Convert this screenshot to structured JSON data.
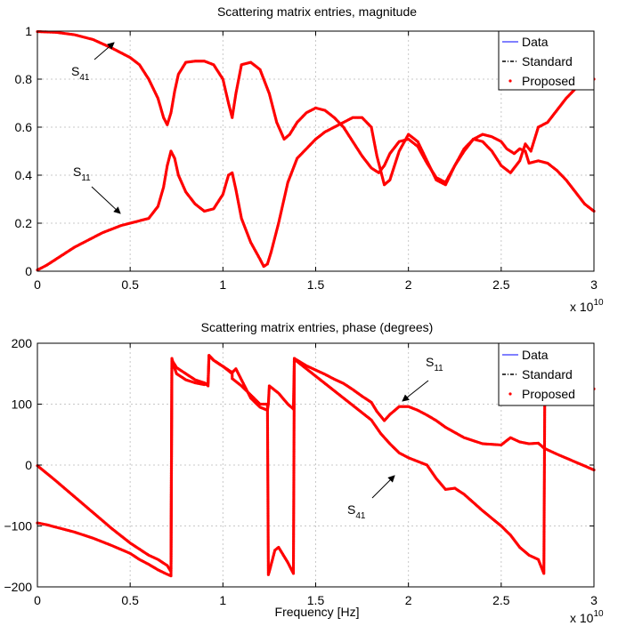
{
  "chart_data": [
    {
      "id": "magnitude",
      "type": "line",
      "title": "Scattering matrix entries, magnitude",
      "xlabel": "",
      "ylabel": "",
      "xlim": [
        0,
        30000000000.0
      ],
      "ylim": [
        0,
        1
      ],
      "x_ticks": [
        0,
        5000000000.0,
        10000000000.0,
        15000000000.0,
        20000000000.0,
        25000000000.0,
        30000000000.0
      ],
      "x_tick_labels": [
        "0",
        "0.5",
        "1",
        "1.5",
        "2",
        "2.5",
        "3"
      ],
      "y_ticks": [
        0,
        0.2,
        0.4,
        0.6,
        0.8,
        1
      ],
      "y_tick_labels": [
        "0",
        "0.2",
        "0.4",
        "0.6",
        "0.8",
        "1"
      ],
      "x_exponent_label": {
        "base": "x 10",
        "exp": "10"
      },
      "grid": true,
      "legend_position": "top-right",
      "legend": [
        {
          "label": "Data",
          "style": "solid",
          "color": "#0000ff"
        },
        {
          "label": "Standard",
          "style": "dashdot",
          "color": "#000000"
        },
        {
          "label": "Proposed",
          "style": "dots",
          "color": "#ff0000"
        }
      ],
      "annotations": [
        {
          "base": "S",
          "sub": "41"
        },
        {
          "base": "S",
          "sub": "11"
        }
      ],
      "series": [
        {
          "name": "S41",
          "x_ghz": [
            0,
            1,
            2,
            3,
            4,
            5,
            5.5,
            6,
            6.5,
            6.8,
            7,
            7.2,
            7.4,
            7.6,
            8,
            8.5,
            9,
            9.5,
            10,
            10.3,
            10.5,
            10.7,
            11,
            11.5,
            12,
            12.5,
            12.9,
            13.3,
            13.6,
            14,
            14.5,
            15,
            15.5,
            16,
            16.5,
            17,
            17.5,
            18,
            18.4,
            18.7,
            19,
            19.5,
            20,
            20.5,
            21,
            21.5,
            22,
            22.5,
            23,
            23.5,
            24,
            24.5,
            25,
            25.3,
            25.7,
            26,
            26.3,
            26.5,
            27,
            27.5,
            28,
            28.5,
            29,
            29.5,
            30
          ],
          "y": [
            0.998,
            0.995,
            0.985,
            0.965,
            0.93,
            0.89,
            0.86,
            0.8,
            0.72,
            0.64,
            0.61,
            0.66,
            0.75,
            0.82,
            0.87,
            0.875,
            0.875,
            0.86,
            0.8,
            0.7,
            0.64,
            0.74,
            0.86,
            0.87,
            0.84,
            0.74,
            0.62,
            0.55,
            0.57,
            0.62,
            0.66,
            0.68,
            0.67,
            0.64,
            0.6,
            0.54,
            0.48,
            0.43,
            0.41,
            0.44,
            0.49,
            0.54,
            0.55,
            0.52,
            0.45,
            0.39,
            0.37,
            0.44,
            0.5,
            0.55,
            0.57,
            0.56,
            0.54,
            0.51,
            0.49,
            0.51,
            0.5,
            0.45,
            0.46,
            0.45,
            0.42,
            0.38,
            0.33,
            0.28,
            0.25
          ]
        },
        {
          "name": "S11",
          "x_ghz": [
            0,
            0.5,
            1,
            1.5,
            2,
            2.5,
            3,
            3.5,
            4,
            4.5,
            5,
            5.5,
            6,
            6.5,
            6.8,
            7,
            7.2,
            7.4,
            7.6,
            8,
            8.5,
            9,
            9.5,
            10,
            10.3,
            10.5,
            10.7,
            11,
            11.5,
            12,
            12.2,
            12.4,
            12.6,
            13,
            13.5,
            14,
            14.5,
            15,
            15.5,
            16,
            16.5,
            17,
            17.5,
            18,
            18.3,
            18.7,
            19,
            19.5,
            20,
            20.5,
            21,
            21.5,
            22,
            22.5,
            23,
            23.5,
            24,
            24.5,
            25,
            25.5,
            26,
            26.3,
            26.6,
            27,
            27.5,
            28,
            28.5,
            29,
            30
          ],
          "y": [
            0.005,
            0.025,
            0.05,
            0.075,
            0.1,
            0.12,
            0.14,
            0.16,
            0.175,
            0.19,
            0.2,
            0.21,
            0.22,
            0.27,
            0.35,
            0.44,
            0.5,
            0.47,
            0.4,
            0.33,
            0.28,
            0.25,
            0.26,
            0.32,
            0.4,
            0.41,
            0.34,
            0.22,
            0.12,
            0.05,
            0.02,
            0.03,
            0.08,
            0.2,
            0.37,
            0.47,
            0.51,
            0.55,
            0.58,
            0.6,
            0.62,
            0.64,
            0.64,
            0.6,
            0.48,
            0.36,
            0.38,
            0.5,
            0.57,
            0.54,
            0.46,
            0.38,
            0.36,
            0.44,
            0.51,
            0.55,
            0.54,
            0.5,
            0.44,
            0.41,
            0.46,
            0.53,
            0.5,
            0.6,
            0.62,
            0.67,
            0.72,
            0.76,
            0.8
          ]
        }
      ]
    },
    {
      "id": "phase",
      "type": "line",
      "title": "Scattering matrix entries, phase (degrees)",
      "xlabel": "Frequency [Hz]",
      "ylabel": "",
      "xlim": [
        0,
        30000000000.0
      ],
      "ylim": [
        -200,
        200
      ],
      "x_ticks": [
        0,
        5000000000.0,
        10000000000.0,
        15000000000.0,
        20000000000.0,
        25000000000.0,
        30000000000.0
      ],
      "x_tick_labels": [
        "0",
        "0.5",
        "1",
        "1.5",
        "2",
        "2.5",
        "3"
      ],
      "y_ticks": [
        -200,
        -100,
        0,
        100,
        200
      ],
      "y_tick_labels": [
        "−200",
        "−100",
        "0",
        "100",
        "200"
      ],
      "x_exponent_label": {
        "base": "x 10",
        "exp": "10"
      },
      "grid": true,
      "legend_position": "top-right",
      "legend": [
        {
          "label": "Data",
          "style": "solid",
          "color": "#0000ff"
        },
        {
          "label": "Standard",
          "style": "dashdot",
          "color": "#000000"
        },
        {
          "label": "Proposed",
          "style": "dots",
          "color": "#ff0000"
        }
      ],
      "annotations": [
        {
          "base": "S",
          "sub": "11"
        },
        {
          "base": "S",
          "sub": "41"
        }
      ],
      "series": [
        {
          "name": "S11",
          "x_ghz": [
            0,
            0.5,
            1,
            2,
            3,
            4,
            5,
            5.5,
            6,
            6.5,
            6.9,
            7.2,
            7.25,
            7.5,
            8,
            8.5,
            9,
            9.2,
            9.25,
            9.5,
            10,
            10.5,
            10.7,
            11,
            11.5,
            12,
            12.4,
            12.45,
            12.5,
            13,
            13.5,
            13.8,
            13.85,
            14.5,
            15,
            15.5,
            16,
            16.5,
            17,
            17.5,
            18,
            18.3,
            18.7,
            19,
            19.5,
            20,
            20.5,
            21,
            21.5,
            22,
            23,
            24,
            25,
            25.5,
            26,
            26.5,
            27,
            27.3,
            27.5,
            28,
            29,
            30
          ],
          "y": [
            -95,
            -98,
            -102,
            -110,
            -120,
            -132,
            -145,
            -155,
            -163,
            -172,
            -178,
            -182,
            172,
            150,
            140,
            135,
            132,
            135,
            180,
            172,
            162,
            152,
            158,
            140,
            110,
            95,
            90,
            100,
            130,
            118,
            100,
            92,
            175,
            163,
            156,
            149,
            141,
            134,
            124,
            113,
            103,
            88,
            73,
            83,
            96,
            96,
            90,
            82,
            73,
            62,
            45,
            35,
            33,
            45,
            38,
            35,
            36,
            28,
            25,
            18,
            5,
            -8
          ]
        },
        {
          "name": "S41",
          "x_ghz": [
            0,
            1,
            2,
            3,
            4,
            5,
            6,
            6.5,
            7,
            7.2,
            7.25,
            7.3,
            7.5,
            8,
            8.5,
            9,
            9.2,
            9.25,
            9.5,
            10,
            10.5,
            10.5,
            11,
            11.5,
            12,
            12.4,
            12.45,
            12.5,
            12.8,
            13,
            13.5,
            13.8,
            13.85,
            14,
            14.5,
            15,
            16,
            17,
            18,
            18.5,
            19,
            19.5,
            20,
            21,
            21.5,
            22,
            22.5,
            23,
            24,
            25,
            25.5,
            26,
            26.5,
            27,
            27.3,
            27.35,
            27.5,
            30
          ],
          "y": [
            -1,
            -26,
            -52,
            -78,
            -104,
            -128,
            -148,
            -155,
            -165,
            -175,
            175,
            170,
            160,
            150,
            140,
            135,
            130,
            180,
            172,
            162,
            150,
            142,
            130,
            115,
            100,
            100,
            -180,
            -175,
            -140,
            -135,
            -160,
            -178,
            175,
            170,
            158,
            146,
            122,
            98,
            74,
            52,
            35,
            20,
            12,
            0,
            -22,
            -40,
            -38,
            -48,
            -75,
            -100,
            -115,
            -135,
            -148,
            -155,
            -178,
            120,
            115,
            125
          ]
        }
      ]
    }
  ]
}
